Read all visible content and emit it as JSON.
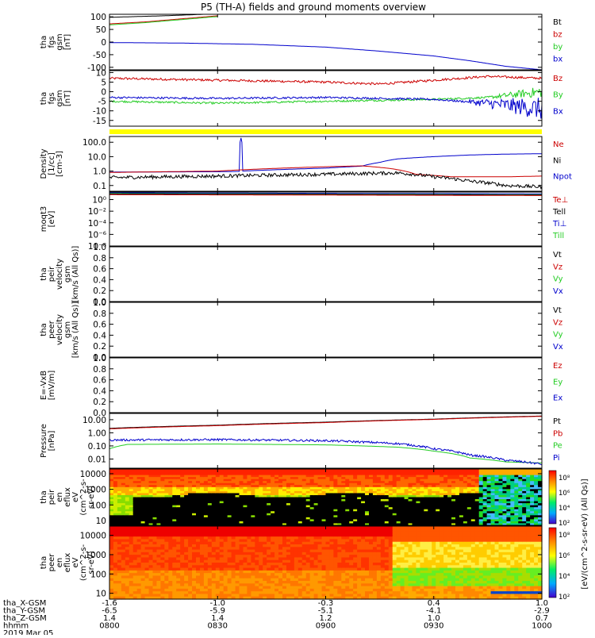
{
  "title": "P5 (TH-A) fields and ground moments overview",
  "chart_data": [
    {
      "type": "line",
      "key": "fgs",
      "ylabel_lines": [
        "tha",
        "fgs",
        "gsm",
        "[nT]"
      ],
      "ylim": [
        -110,
        110
      ],
      "yticks": [
        100,
        50,
        0,
        -50,
        -100
      ],
      "legend": [
        {
          "name": "Bt",
          "color": "#000000"
        },
        {
          "name": "bz",
          "color": "#cc0000"
        },
        {
          "name": "by",
          "color": "#22cc22"
        },
        {
          "name": "bx",
          "color": "#0000cc"
        }
      ],
      "series": [
        {
          "name": "Bt",
          "color": "#000000",
          "x": [
            0,
            15,
            30
          ],
          "y": [
            98,
            104,
            112
          ]
        },
        {
          "name": "bz",
          "color": "#cc0000",
          "x": [
            0,
            10,
            20,
            30
          ],
          "y": [
            72,
            80,
            92,
            104
          ]
        },
        {
          "name": "by",
          "color": "#22cc22",
          "x": [
            0,
            10,
            20,
            30
          ],
          "y": [
            68,
            77,
            89,
            101
          ]
        },
        {
          "name": "bx",
          "color": "#0000cc",
          "x": [
            0,
            20,
            40,
            60,
            75,
            90,
            100,
            110,
            120
          ],
          "y": [
            -2,
            -4,
            -9,
            -20,
            -36,
            -55,
            -74,
            -96,
            -110
          ]
        }
      ]
    },
    {
      "type": "line",
      "key": "fgs-small",
      "ylabel_lines": [
        "tha",
        "fgs",
        "gsm",
        "[nT]"
      ],
      "ylim": [
        -18,
        11
      ],
      "yticks": [
        10,
        5,
        0,
        -5,
        -10,
        -15
      ],
      "legend": [
        {
          "name": "Bz",
          "color": "#cc0000"
        },
        {
          "name": "By",
          "color": "#22cc22"
        },
        {
          "name": "Bx",
          "color": "#0000cc"
        }
      ],
      "series": [
        {
          "name": "Bz",
          "color": "#cc0000",
          "noise": 0.6,
          "x": [
            0,
            30,
            60,
            75,
            90,
            105,
            120
          ],
          "y": [
            7,
            6,
            5,
            4,
            6,
            8,
            7
          ]
        },
        {
          "name": "By",
          "color": "#22cc22",
          "noise": 0.5,
          "noise_tail": [
            105,
            3
          ],
          "x": [
            0,
            30,
            60,
            90,
            105,
            120
          ],
          "y": [
            -5,
            -6,
            -5,
            -4,
            -3,
            0
          ]
        },
        {
          "name": "Bx",
          "color": "#0000cc",
          "noise": 0.5,
          "noise_tail": [
            100,
            6
          ],
          "x": [
            0,
            30,
            60,
            90,
            105,
            120
          ],
          "y": [
            -3,
            -3.5,
            -3,
            -4,
            -6,
            -9
          ]
        }
      ]
    },
    {
      "type": "line",
      "key": "density",
      "log": true,
      "ylabel_lines": [
        "Density",
        "[1/cc]",
        "[cm-3]"
      ],
      "ylim": [
        0.04,
        250
      ],
      "yticks": [
        100.0,
        10.0,
        1.0,
        0.1
      ],
      "yticklabels": [
        "100.0",
        "10.0",
        "1.0",
        "0.1"
      ],
      "legend": [
        {
          "name": "Ne",
          "color": "#cc0000"
        },
        {
          "name": "Ni",
          "color": "#000000"
        },
        {
          "name": "Npot",
          "color": "#0000cc"
        }
      ],
      "series": [
        {
          "name": "Npot",
          "color": "#0000cc",
          "x": [
            0,
            30,
            36,
            36.5,
            37,
            60,
            70,
            75,
            80,
            90,
            100,
            110,
            120
          ],
          "y": [
            0.85,
            0.9,
            0.95,
            200,
            1.0,
            1.6,
            2.2,
            4,
            7,
            10,
            13,
            15,
            16
          ]
        },
        {
          "name": "Ne",
          "color": "#cc0000",
          "x": [
            0,
            30,
            60,
            70,
            78,
            85,
            95,
            110,
            120
          ],
          "y": [
            0.8,
            1.0,
            2.0,
            2.3,
            1.5,
            0.6,
            0.4,
            0.4,
            0.45
          ]
        },
        {
          "name": "Ni",
          "color": "#000000",
          "logNoise": 0.12,
          "x": [
            0,
            30,
            60,
            80,
            90,
            100,
            110,
            120
          ],
          "y": [
            0.35,
            0.45,
            0.6,
            0.75,
            0.4,
            0.2,
            0.1,
            0.08
          ]
        }
      ]
    },
    {
      "type": "line",
      "key": "temperature",
      "log": true,
      "ylabel_lines": [
        "moqt3",
        "[eV]"
      ],
      "ylim": [
        1e-08,
        20
      ],
      "yticks": [
        1,
        0.01,
        0.0001,
        1e-06,
        1e-08
      ],
      "yticklabels": [
        "10⁰",
        "10⁻²",
        "10⁻⁴",
        "10⁻⁶",
        "10⁻⁸"
      ],
      "legend": [
        {
          "name": "Te⊥",
          "color": "#cc0000"
        },
        {
          "name": "Tell",
          "color": "#000000"
        },
        {
          "name": "Ti⊥",
          "color": "#0000cc"
        },
        {
          "name": "Till",
          "color": "#22cc22"
        }
      ],
      "series": [
        {
          "name": "Ti⊥",
          "color": "#0000cc",
          "x": [
            0,
            60,
            120
          ],
          "y": [
            15,
            12,
            10
          ]
        },
        {
          "name": "Till",
          "color": "#22cc22",
          "x": [
            0,
            60,
            120
          ],
          "y": [
            11,
            9,
            7
          ]
        },
        {
          "name": "Tell",
          "color": "#000000",
          "x": [
            0,
            60,
            120
          ],
          "y": [
            9,
            8,
            6
          ]
        },
        {
          "name": "Te⊥",
          "color": "#cc0000",
          "x": [
            0,
            60,
            120
          ],
          "y": [
            7,
            6,
            5
          ]
        }
      ]
    },
    {
      "type": "line",
      "key": "peir-velocity",
      "ylabel_lines": [
        "tha",
        "peir",
        "velocity",
        "gsm",
        "[km/s (All Qs)]"
      ],
      "ylim": [
        0,
        1
      ],
      "yticks": [
        1.0,
        0.8,
        0.6,
        0.4,
        0.2,
        0.0
      ],
      "yticklabels": [
        "1.0",
        "0.8",
        "0.6",
        "0.4",
        "0.2",
        "0.0"
      ],
      "legend": [
        {
          "name": "Vt",
          "color": "#000000"
        },
        {
          "name": "Vz",
          "color": "#cc0000"
        },
        {
          "name": "Vy",
          "color": "#22cc22"
        },
        {
          "name": "Vx",
          "color": "#0000cc"
        }
      ],
      "series": []
    },
    {
      "type": "line",
      "key": "peer-velocity",
      "ylabel_lines": [
        "tha",
        "peer",
        "velocity",
        "gsm",
        "[km/s (All Qs)]"
      ],
      "ylim": [
        0,
        1
      ],
      "yticks": [
        1.0,
        0.8,
        0.6,
        0.4,
        0.2,
        0.0
      ],
      "yticklabels": [
        "1.0",
        "0.8",
        "0.6",
        "0.4",
        "0.2",
        "0.0"
      ],
      "legend": [
        {
          "name": "Vt",
          "color": "#000000"
        },
        {
          "name": "Vz",
          "color": "#cc0000"
        },
        {
          "name": "Vy",
          "color": "#22cc22"
        },
        {
          "name": "Vx",
          "color": "#0000cc"
        }
      ],
      "series": []
    },
    {
      "type": "line",
      "key": "efield",
      "ylabel_lines": [
        "E=-VxB",
        "[mV/m]"
      ],
      "ylim": [
        0,
        1
      ],
      "yticks": [
        1.0,
        0.8,
        0.6,
        0.4,
        0.2,
        0.0
      ],
      "yticklabels": [
        "1.0",
        "0.8",
        "0.6",
        "0.4",
        "0.2",
        "0.0"
      ],
      "legend": [
        {
          "name": "Ez",
          "color": "#cc0000"
        },
        {
          "name": "Ey",
          "color": "#22cc22"
        },
        {
          "name": "Ex",
          "color": "#0000cc"
        }
      ],
      "series": []
    },
    {
      "type": "line",
      "key": "pressure",
      "log": true,
      "ylabel_lines": [
        "Pressure",
        "[nPa]"
      ],
      "ylim": [
        0.002,
        30
      ],
      "yticks": [
        10.0,
        1.0,
        0.1,
        0.01
      ],
      "yticklabels": [
        "10.00",
        "1.00",
        "0.10",
        "0.01"
      ],
      "legend": [
        {
          "name": "Pt",
          "color": "#000000"
        },
        {
          "name": "Pb",
          "color": "#cc0000"
        },
        {
          "name": "Pe",
          "color": "#22cc22"
        },
        {
          "name": "Pi",
          "color": "#0000cc"
        }
      ],
      "series": [
        {
          "name": "Pt",
          "color": "#000000",
          "x": [
            0,
            30,
            60,
            90,
            120
          ],
          "y": [
            2.2,
            3.8,
            6.5,
            11,
            19
          ]
        },
        {
          "name": "Pb",
          "color": "#cc0000",
          "x": [
            0,
            30,
            60,
            90,
            120
          ],
          "y": [
            2.0,
            3.5,
            6.0,
            10.5,
            18
          ]
        },
        {
          "name": "Pe",
          "color": "#22cc22",
          "x": [
            0,
            5,
            30,
            60,
            80,
            90,
            100,
            110,
            120
          ],
          "y": [
            0.06,
            0.13,
            0.14,
            0.12,
            0.08,
            0.04,
            0.012,
            0.006,
            0.005
          ]
        },
        {
          "name": "Pi",
          "color": "#0000cc",
          "logNoise": 0.08,
          "x": [
            0,
            30,
            60,
            80,
            90,
            100,
            110,
            120
          ],
          "y": [
            0.28,
            0.3,
            0.25,
            0.15,
            0.06,
            0.02,
            0.008,
            0.004
          ]
        }
      ]
    },
    {
      "type": "heatmap",
      "key": "peir-spectrogram",
      "ylabel_lines": [
        "tha",
        "peir",
        "en",
        "eflux",
        "eV",
        "(cm^2-s-",
        "sr-eV)"
      ],
      "ylim": [
        5,
        20000
      ],
      "log": true,
      "yticks": [
        10000,
        1000,
        100,
        10
      ],
      "yticklabels": [
        "10000",
        "1000",
        "100",
        "10"
      ],
      "colorbar": {
        "label": "[eV/(cm^2-s-sr-eV) (All Qs)]",
        "ticklabels": [
          "10⁸",
          "10⁶",
          "10⁴",
          "10²"
        ]
      }
    },
    {
      "type": "heatmap",
      "key": "peer-spectrogram",
      "ylabel_lines": [
        "tha",
        "peer",
        "en",
        "eflux",
        "eV",
        "(cm^2-s-",
        "sr-eV)"
      ],
      "ylim": [
        5,
        30000
      ],
      "log": true,
      "yticks": [
        10000,
        1000,
        100,
        10
      ],
      "yticklabels": [
        "10000",
        "1000",
        "100",
        "10"
      ],
      "colorbar": {
        "label": "[eV/(cm^2-s-sr-eV) (All Qs)]",
        "ticklabels": [
          "10⁸",
          "10⁶",
          "10⁴",
          "10²"
        ]
      }
    }
  ],
  "xaxis": {
    "xlim": [
      0,
      120
    ],
    "ticks_minutes": [
      0,
      30,
      60,
      90,
      120
    ],
    "rows": [
      {
        "label": "tha_X-GSM",
        "values": [
          "-1.6",
          "-1.0",
          "-0.3",
          "0.4",
          "1.0"
        ]
      },
      {
        "label": "tha_Y-GSM",
        "values": [
          "-6.5",
          "-5.9",
          "-5.1",
          "-4.1",
          "-2.9"
        ]
      },
      {
        "label": "tha_Z-GSM",
        "values": [
          "1.4",
          "1.4",
          "1.2",
          "1.0",
          "0.7"
        ]
      },
      {
        "label": "hhmm",
        "values": [
          "0800",
          "0830",
          "0900",
          "0930",
          "1000"
        ]
      }
    ],
    "date": "2019 Mar 05"
  }
}
